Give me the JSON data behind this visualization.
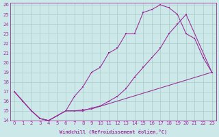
{
  "xlabel": "Windchill (Refroidissement éolien,°C)",
  "background_color": "#cce8e8",
  "grid_color": "#aacccc",
  "line_color": "#993399",
  "ylim": [
    14,
    26.2
  ],
  "xlim": [
    -0.5,
    23.5
  ],
  "yticks": [
    14,
    15,
    16,
    17,
    18,
    19,
    20,
    21,
    22,
    23,
    24,
    25,
    26
  ],
  "xticks": [
    0,
    1,
    2,
    3,
    4,
    5,
    6,
    7,
    8,
    9,
    10,
    11,
    12,
    13,
    14,
    15,
    16,
    17,
    18,
    19,
    20,
    21,
    22,
    23
  ],
  "line1_x": [
    0,
    1,
    2,
    3,
    4,
    5,
    6,
    7,
    8,
    9,
    10,
    11,
    12,
    13,
    14,
    15,
    16,
    17,
    18,
    19,
    20,
    21,
    22,
    23
  ],
  "line1_y": [
    17,
    16,
    15,
    14.2,
    14,
    14.5,
    15,
    16.5,
    17.5,
    19,
    19.5,
    21,
    21.5,
    23,
    23,
    25.2,
    25.5,
    26,
    25.7,
    25,
    23,
    22.5,
    20.5,
    19
  ],
  "line2_x": [
    0,
    1,
    2,
    3,
    4,
    5,
    6,
    7,
    8,
    9,
    10,
    11,
    12,
    13,
    14,
    15,
    16,
    17,
    18,
    19,
    20,
    23
  ],
  "line2_y": [
    17,
    16,
    15,
    14.2,
    14,
    14.5,
    15,
    15,
    15,
    15.3,
    15.5,
    16,
    16.5,
    17.3,
    18.5,
    19.5,
    20.5,
    21.5,
    23,
    24,
    25,
    19
  ],
  "line3_x": [
    0,
    1,
    2,
    3,
    4,
    5,
    6,
    7,
    8,
    9,
    23
  ],
  "line3_y": [
    17,
    16,
    15,
    14.2,
    14,
    14.5,
    15,
    15,
    15.1,
    15.2,
    19
  ]
}
